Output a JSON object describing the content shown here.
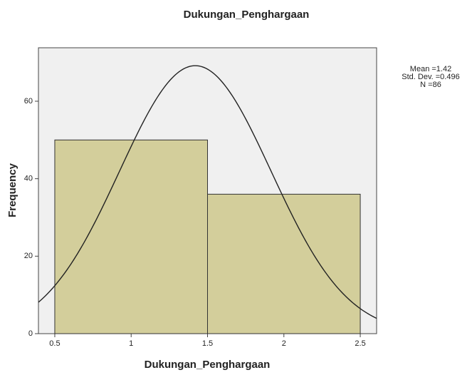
{
  "chart_data": {
    "type": "histogram",
    "title": "Dukungan_Penghargaan",
    "x_label": "Dukungan_Penghargaan",
    "y_label": "Frequency",
    "bins": [
      0.5,
      1.5,
      2.5
    ],
    "values": [
      50,
      36
    ],
    "color": "#d3ce9b",
    "xlim": [
      0.393,
      2.607
    ],
    "xticks": [
      0.5,
      1,
      1.5,
      2,
      2.5
    ],
    "ylim": [
      0,
      73.8
    ],
    "yticks": [
      0,
      20,
      40,
      60
    ],
    "normal_curve": {
      "mean": {
        "value": 1.42,
        "label": "Mean =1.42"
      },
      "std_dev": {
        "value": 0.496,
        "label": "Std. Dev. =0.496"
      },
      "n": {
        "value": 86,
        "label": "N =86"
      }
    }
  }
}
